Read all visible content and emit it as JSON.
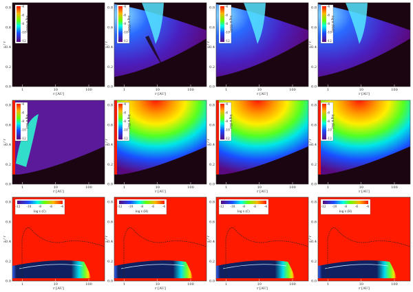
{
  "figure": {
    "rows": [
      {
        "colorbar_orientation": "vertical",
        "colorbar_labels": [
          "log n (H₂O)",
          "log n (H₂O)",
          "log n (H₂O)",
          "log n (H₂O)"
        ],
        "colorbar_ticks": [
          "-4",
          "-6",
          "-8",
          "-10",
          "-12"
        ]
      },
      {
        "colorbar_orientation": "vertical",
        "colorbar_labels": [
          "log n (H₂)",
          "log n (H₂)",
          "log n (H₂)",
          "log n (H₂)"
        ],
        "colorbar_ticks": [
          "-4",
          "-6",
          "-8",
          "-10",
          "-12"
        ]
      },
      {
        "colorbar_orientation": "horizontal",
        "colorbar_labels": [
          "log ε (C)",
          "log ε (H)",
          "log ε (C)",
          "log ε (H)"
        ],
        "colorbar_ticks": [
          "-12",
          "-10",
          "-8",
          "-6",
          "-4"
        ]
      }
    ],
    "xlabel": "r [AU]",
    "ylabel": "z / r",
    "xticks": [
      "1",
      "10",
      "100"
    ],
    "yticks_top": [
      "0.0",
      "0.2",
      "0.4",
      "0.6",
      "0.8"
    ],
    "yticks_other": [
      "0.0",
      "0.2",
      "0.4",
      "0.6",
      "0.8"
    ]
  },
  "chart_data": {
    "type": "heatmap",
    "layout": "3x4 grid of panels",
    "x_scale": "log",
    "xlim": [
      0.5,
      300
    ],
    "ylim": [
      0.0,
      0.85
    ],
    "colormap": "rainbow (purple-blue-cyan-green-yellow-red)",
    "colors": {
      "background_low": "#1b0510",
      "high": "#ff1a00",
      "contour_line": "#222222"
    }
  }
}
